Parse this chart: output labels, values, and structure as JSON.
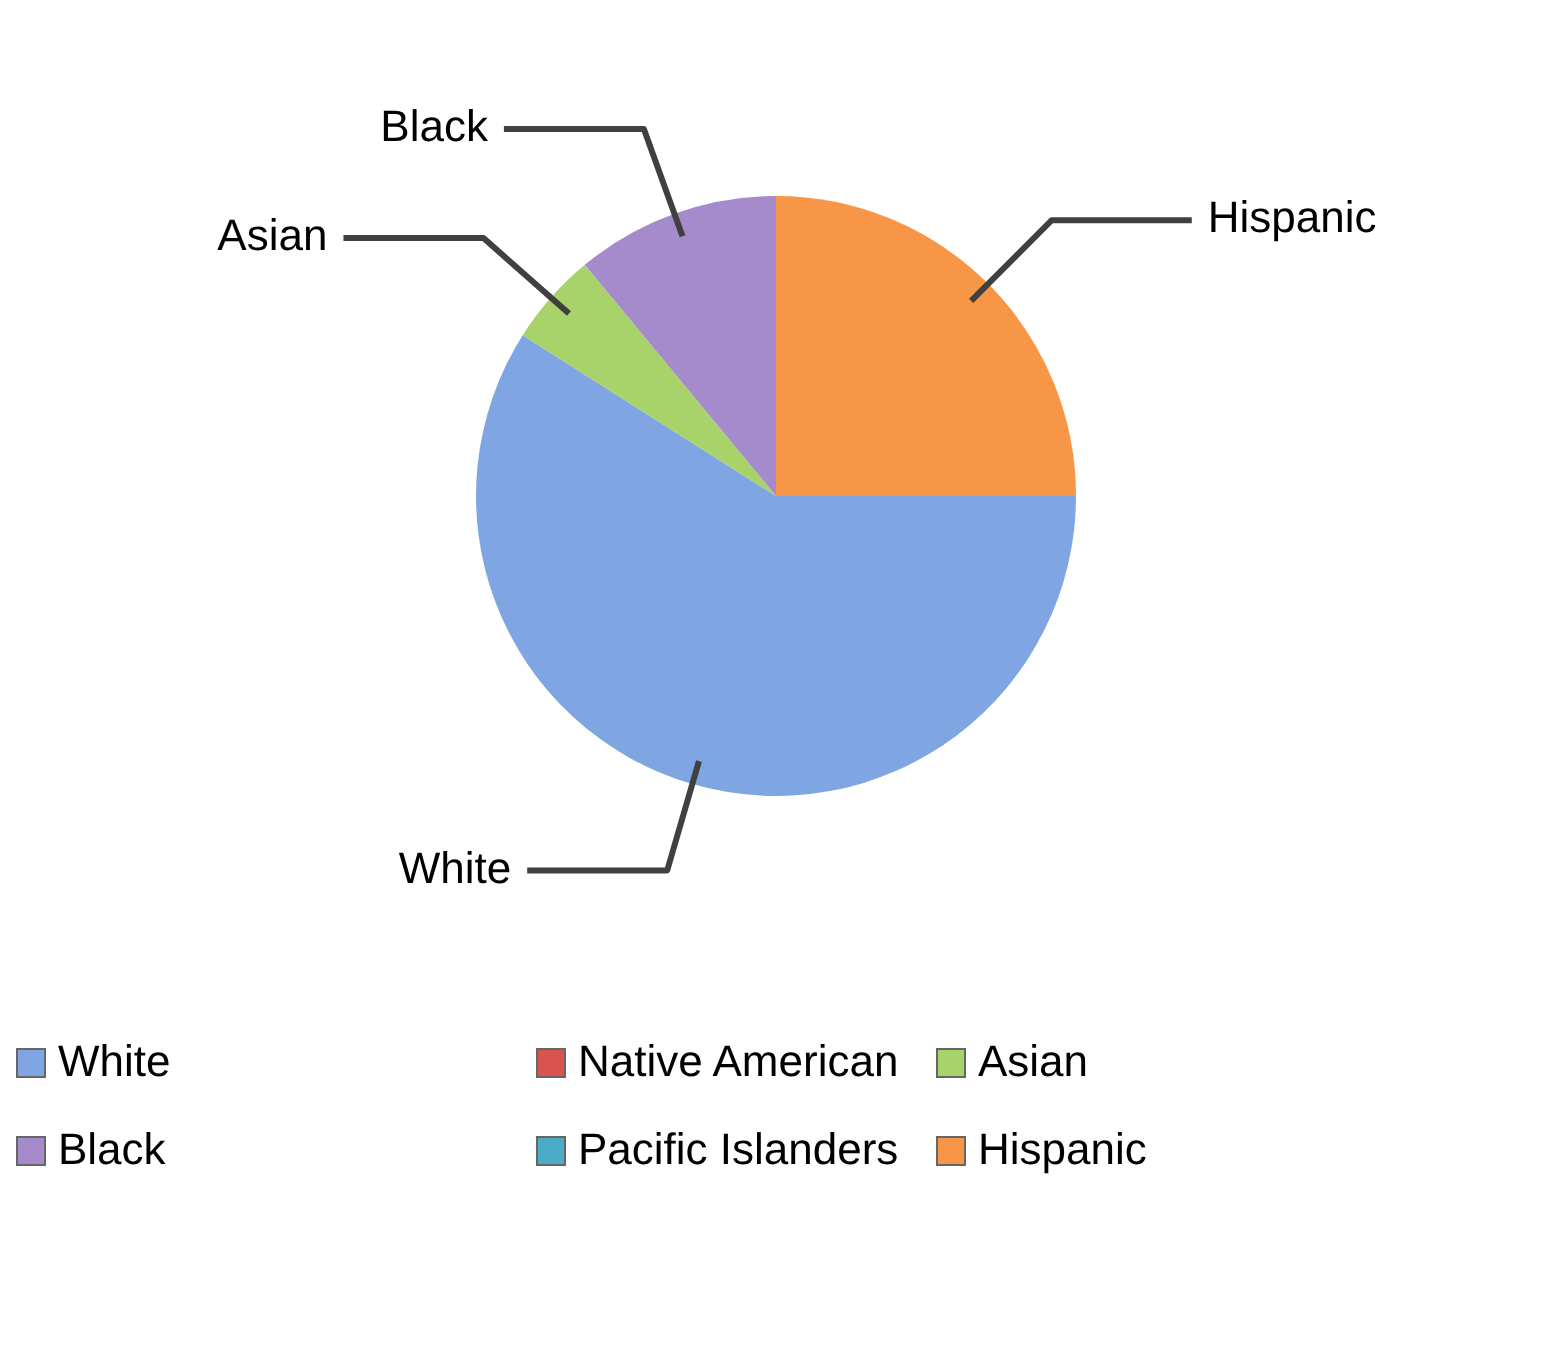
{
  "chart_data": {
    "type": "pie",
    "categories": [
      "White",
      "Native American",
      "Asian",
      "Black",
      "Pacific Islanders",
      "Hispanic"
    ],
    "values": [
      59,
      0,
      5,
      11,
      0,
      25
    ],
    "colors": [
      "#7fa6e3",
      "#d9534f",
      "#a8d26a",
      "#a58bcb",
      "#4bacc6",
      "#f79646"
    ],
    "legend": "bottom"
  }
}
